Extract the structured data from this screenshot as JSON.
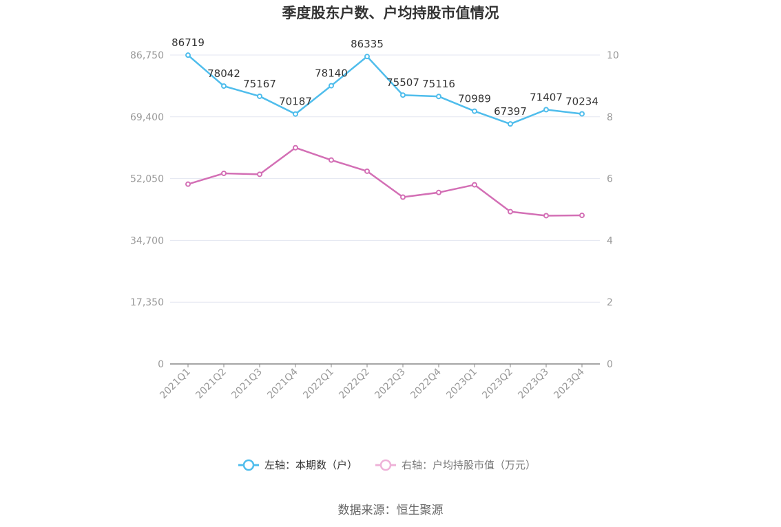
{
  "chart_data": {
    "type": "line",
    "title": "季度股东户数、户均持股市值情况",
    "categories": [
      "2021Q1",
      "2021Q2",
      "2021Q3",
      "2021Q4",
      "2022Q1",
      "2022Q2",
      "2022Q3",
      "2022Q4",
      "2023Q1",
      "2023Q2",
      "2023Q3",
      "2023Q4"
    ],
    "y_left": {
      "ticks": [
        "0",
        "17,350",
        "34,700",
        "52,050",
        "69,400",
        "86,750"
      ],
      "min": 0,
      "max": 86750
    },
    "y_right": {
      "ticks": [
        "0",
        "2",
        "4",
        "6",
        "8",
        "10"
      ],
      "min": 0,
      "max": 10
    },
    "grid": true,
    "legend_position": "bottom",
    "series": [
      {
        "name": "左轴：本期数（户）",
        "axis": "left",
        "color": "#4fbdec",
        "values": [
          86719,
          78042,
          75167,
          70187,
          78140,
          86335,
          75507,
          75116,
          70989,
          67397,
          71407,
          70234
        ],
        "labels": [
          "86719",
          "78042",
          "75167",
          "70187",
          "78140",
          "86335",
          "75507",
          "75116",
          "70989",
          "67397",
          "71407",
          "70234"
        ]
      },
      {
        "name": "右轴：户均持股市值（万元）",
        "axis": "right",
        "color": "#d36fb5",
        "values": [
          5.82,
          6.17,
          6.14,
          7.0,
          6.6,
          6.24,
          5.4,
          5.55,
          5.8,
          4.93,
          4.8,
          4.81
        ]
      }
    ],
    "source": "数据来源：恒生聚源"
  }
}
